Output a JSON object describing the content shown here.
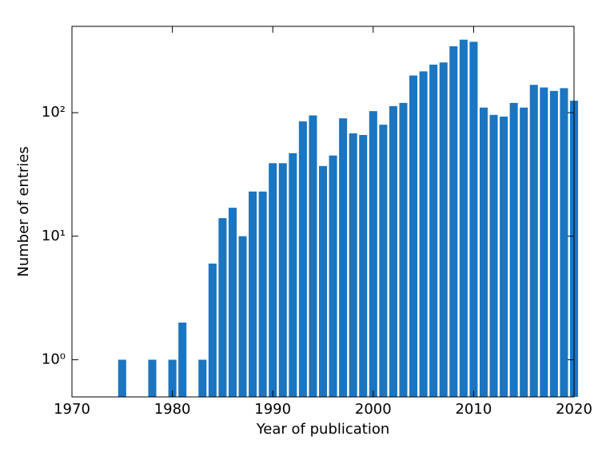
{
  "chart_data": {
    "type": "bar",
    "xlabel": "Year of publication",
    "ylabel": "Number of entries",
    "x": [
      1975,
      1978,
      1980,
      1981,
      1983,
      1984,
      1985,
      1986,
      1987,
      1988,
      1989,
      1990,
      1991,
      1992,
      1993,
      1994,
      1995,
      1996,
      1997,
      1998,
      1999,
      2000,
      2001,
      2002,
      2003,
      2004,
      2005,
      2006,
      2007,
      2008,
      2009,
      2010,
      2011,
      2012,
      2013,
      2014,
      2015,
      2016,
      2017,
      2018,
      2019,
      2020
    ],
    "values": [
      1,
      1,
      1,
      2,
      1,
      6,
      14,
      17,
      10,
      23,
      23,
      39,
      39,
      47,
      85,
      95,
      37,
      45,
      90,
      68,
      66,
      103,
      80,
      113,
      120,
      200,
      216,
      245,
      255,
      345,
      390,
      375,
      110,
      96,
      93,
      120,
      110,
      168,
      160,
      150,
      158,
      125
    ],
    "color": "#1b75c1",
    "log_y": true,
    "xlim": [
      1970,
      2020
    ],
    "xticks": [
      1970,
      1980,
      1990,
      2000,
      2010,
      2020
    ],
    "ylim": [
      0.5,
      500
    ],
    "yticks": [
      {
        "value": 1,
        "label": "10⁰"
      },
      {
        "value": 10,
        "label": "10¹"
      },
      {
        "value": 100,
        "label": "10²"
      }
    ]
  }
}
